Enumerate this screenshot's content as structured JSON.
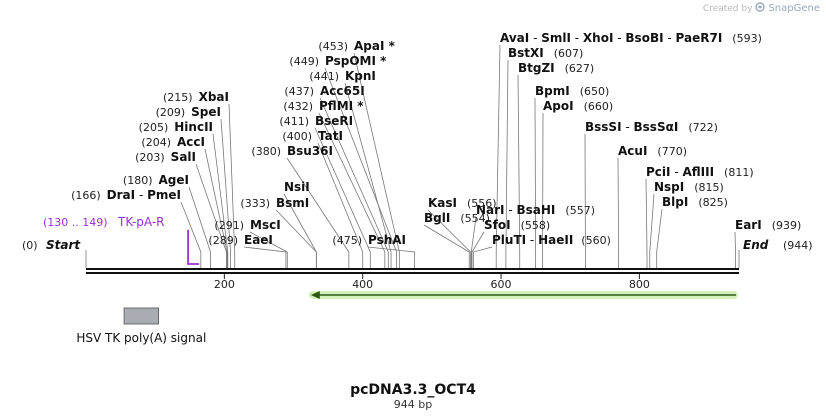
{
  "credit": {
    "text": "Created by",
    "brand": "SnapGene"
  },
  "plasmid": {
    "name": "pcDNA3.3_OCT4",
    "length_label": "944 bp",
    "length": 944
  },
  "axis": {
    "ticks": [
      200,
      400,
      600,
      800
    ]
  },
  "ends": {
    "start": {
      "pos": 0,
      "label": "Start",
      "num": "(0)"
    },
    "end": {
      "pos": 944,
      "label": "End",
      "num": "(944)"
    }
  },
  "sites": [
    {
      "pos": 166,
      "num": "(166)",
      "names": [
        "DraI",
        " - ",
        "PmeI"
      ]
    },
    {
      "pos": 180,
      "num": "(180)",
      "names": [
        "AgeI"
      ]
    },
    {
      "pos": 203,
      "num": "(203)",
      "names": [
        "SalI"
      ]
    },
    {
      "pos": 204,
      "num": "(204)",
      "names": [
        "AccI"
      ]
    },
    {
      "pos": 205,
      "num": "(205)",
      "names": [
        "HincII"
      ]
    },
    {
      "pos": 209,
      "num": "(209)",
      "names": [
        "SpeI"
      ]
    },
    {
      "pos": 215,
      "num": "(215)",
      "names": [
        "XbaI"
      ]
    },
    {
      "pos": 289,
      "num": "(289)",
      "names": [
        "EaeI"
      ]
    },
    {
      "pos": 291,
      "num": "(291)",
      "names": [
        "MscI"
      ]
    },
    {
      "pos": 333,
      "num": "(333)",
      "names": [
        "BsmI"
      ]
    },
    {
      "pos": 333,
      "num": "",
      "names": [
        "NsiI"
      ]
    },
    {
      "pos": 380,
      "num": "(380)",
      "names": [
        "Bsu36I"
      ]
    },
    {
      "pos": 400,
      "num": "(400)",
      "names": [
        "TatI"
      ]
    },
    {
      "pos": 411,
      "num": "(411)",
      "names": [
        "BseRI"
      ]
    },
    {
      "pos": 432,
      "num": "(432)",
      "names": [
        "PflMI *"
      ]
    },
    {
      "pos": 437,
      "num": "(437)",
      "names": [
        "Acc65I"
      ]
    },
    {
      "pos": 441,
      "num": "(441)",
      "names": [
        "KpnI"
      ]
    },
    {
      "pos": 449,
      "num": "(449)",
      "names": [
        "PspOMI *"
      ]
    },
    {
      "pos": 453,
      "num": "(453)",
      "names": [
        "ApaI *"
      ]
    },
    {
      "pos": 475,
      "num": "(475)",
      "names": [
        "PshAI"
      ]
    },
    {
      "pos": 554,
      "num": "(554)",
      "names": [
        "BglI"
      ]
    },
    {
      "pos": 556,
      "num": "(556)",
      "names": [
        "KasI"
      ]
    },
    {
      "pos": 557,
      "num": "(557)",
      "names": [
        "NarI",
        " - ",
        "BsaHI"
      ]
    },
    {
      "pos": 558,
      "num": "(558)",
      "names": [
        "SfoI"
      ]
    },
    {
      "pos": 560,
      "num": "(560)",
      "names": [
        "PluTI",
        " - ",
        "HaeII"
      ]
    },
    {
      "pos": 593,
      "num": "(593)",
      "names": [
        "AvaI",
        " - ",
        "SmlI",
        " - ",
        "XhoI",
        " - ",
        "BsoBI",
        " - ",
        "PaeR7I"
      ]
    },
    {
      "pos": 607,
      "num": "(607)",
      "names": [
        "BstXI"
      ]
    },
    {
      "pos": 627,
      "num": "(627)",
      "names": [
        "BtgZI"
      ]
    },
    {
      "pos": 650,
      "num": "(650)",
      "names": [
        "BpmI"
      ]
    },
    {
      "pos": 660,
      "num": "(660)",
      "names": [
        "ApoI"
      ]
    },
    {
      "pos": 722,
      "num": "(722)",
      "names": [
        "BssSI",
        " - ",
        "BssSαI"
      ]
    },
    {
      "pos": 770,
      "num": "(770)",
      "names": [
        "AcuI"
      ]
    },
    {
      "pos": 811,
      "num": "(811)",
      "names": [
        "PciI",
        " - ",
        "AflIII"
      ]
    },
    {
      "pos": 815,
      "num": "(815)",
      "names": [
        "NspI"
      ]
    },
    {
      "pos": 825,
      "num": "(825)",
      "names": [
        "BlpI"
      ]
    },
    {
      "pos": 939,
      "num": "(939)",
      "names": [
        "EarI"
      ]
    }
  ],
  "primer": {
    "name": "TK-pA-R",
    "range": "(130 .. 149)",
    "start": 130,
    "end": 149
  },
  "features": [
    {
      "name": "HSV TK poly(A) signal",
      "start": 55,
      "end": 105,
      "color": "#a9adb3"
    }
  ],
  "orf": {
    "start": 325,
    "end": 944,
    "direction": "reverse",
    "color": "#9ee06a"
  },
  "colors": {
    "backbone": "#111111",
    "primer": "#9b30d9"
  }
}
